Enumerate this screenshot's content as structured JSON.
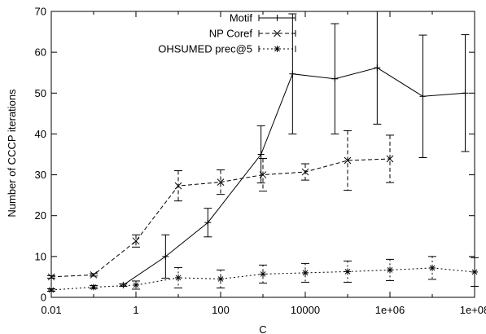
{
  "chart_data": {
    "type": "line",
    "title": "",
    "xlabel": "C",
    "ylabel": "Number of CCCP iterations",
    "x_scale": "log",
    "xlim": [
      0.01,
      100000000
    ],
    "ylim": [
      0,
      70
    ],
    "x_ticks": [
      {
        "value": 0.01,
        "label": "0.01"
      },
      {
        "value": 1,
        "label": "1"
      },
      {
        "value": 100,
        "label": "100"
      },
      {
        "value": 10000,
        "label": "10000"
      },
      {
        "value": 1000000,
        "label": "1e+06"
      },
      {
        "value": 100000000,
        "label": "1e+08"
      }
    ],
    "y_ticks": [
      {
        "value": 0,
        "label": "0"
      },
      {
        "value": 10,
        "label": "10"
      },
      {
        "value": 20,
        "label": "20"
      },
      {
        "value": 30,
        "label": "30"
      },
      {
        "value": 40,
        "label": "40"
      },
      {
        "value": 50,
        "label": "50"
      },
      {
        "value": 60,
        "label": "60"
      },
      {
        "value": 70,
        "label": "70"
      }
    ],
    "grid": false,
    "legend_position": "top-right",
    "series": [
      {
        "name": "Motif",
        "line_style": "solid",
        "marker": "plus",
        "color": "#000000",
        "points": [
          {
            "x": 0.5,
            "y": 3.0,
            "err": 0.3
          },
          {
            "x": 5,
            "y": 10.0,
            "err": 5.3
          },
          {
            "x": 50,
            "y": 18.3,
            "err": 3.5
          },
          {
            "x": 900,
            "y": 35.0,
            "err": 7.0
          },
          {
            "x": 5000,
            "y": 54.7,
            "err": 14.7
          },
          {
            "x": 50000,
            "y": 53.5,
            "err": 13.5
          },
          {
            "x": 500000,
            "y": 56.2,
            "err": 13.8
          },
          {
            "x": 6000000,
            "y": 49.2,
            "err": 15.0
          },
          {
            "x": 60000000,
            "y": 50.0,
            "err": 14.3
          }
        ]
      },
      {
        "name": "NP Coref",
        "line_style": "dashed",
        "marker": "cross",
        "color": "#000000",
        "points": [
          {
            "x": 0.01,
            "y": 5.0,
            "err": 0.3
          },
          {
            "x": 0.1,
            "y": 5.5,
            "err": 0.3
          },
          {
            "x": 1,
            "y": 13.8,
            "err": 1.5
          },
          {
            "x": 10,
            "y": 27.3,
            "err": 3.7
          },
          {
            "x": 100,
            "y": 28.2,
            "err": 3.0
          },
          {
            "x": 1000,
            "y": 30.0,
            "err": 4.0
          },
          {
            "x": 10000,
            "y": 30.7,
            "err": 2.0
          },
          {
            "x": 100000,
            "y": 33.5,
            "err": 7.3
          },
          {
            "x": 1000000,
            "y": 33.9,
            "err": 5.8
          }
        ]
      },
      {
        "name": "OHSUMED prec@5",
        "line_style": "dotted",
        "marker": "star",
        "color": "#000000",
        "points": [
          {
            "x": 0.01,
            "y": 1.8,
            "err": 0.3
          },
          {
            "x": 0.1,
            "y": 2.5,
            "err": 0.4
          },
          {
            "x": 1,
            "y": 3.0,
            "err": 1.0
          },
          {
            "x": 10,
            "y": 4.8,
            "err": 2.5
          },
          {
            "x": 100,
            "y": 4.5,
            "err": 2.2
          },
          {
            "x": 1000,
            "y": 5.7,
            "err": 2.2
          },
          {
            "x": 10000,
            "y": 6.0,
            "err": 2.3
          },
          {
            "x": 100000,
            "y": 6.3,
            "err": 2.6
          },
          {
            "x": 1000000,
            "y": 6.7,
            "err": 2.6
          },
          {
            "x": 10000000,
            "y": 7.2,
            "err": 2.8
          },
          {
            "x": 100000000,
            "y": 6.2,
            "err": 3.5
          }
        ]
      }
    ]
  }
}
